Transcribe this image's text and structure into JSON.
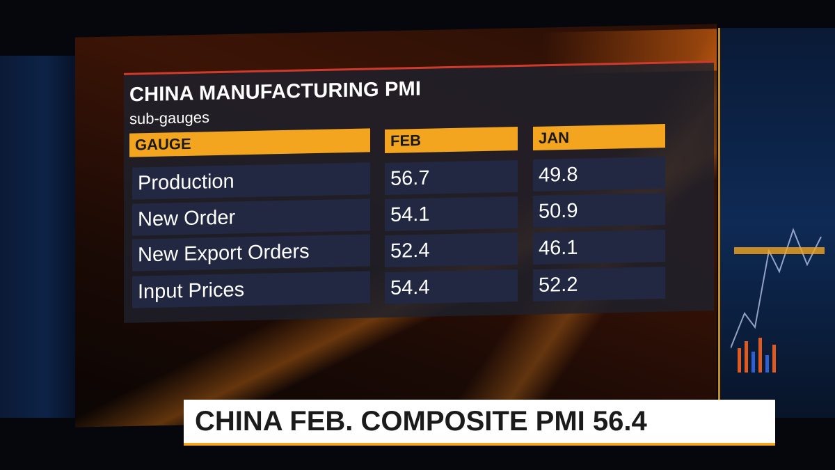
{
  "title": "CHINA MANUFACTURING PMI",
  "subtitle": "sub-gauges",
  "columns": [
    "GAUGE",
    "FEB",
    "JAN"
  ],
  "rows": [
    {
      "gauge": "Production",
      "feb": "56.7",
      "jan": "49.8"
    },
    {
      "gauge": "New Order",
      "feb": "54.1",
      "jan": "50.9"
    },
    {
      "gauge": "New Export Orders",
      "feb": "52.4",
      "jan": "46.1"
    },
    {
      "gauge": "Input Prices",
      "feb": "54.4",
      "jan": "52.2"
    }
  ],
  "ticker": "CHINA FEB. COMPOSITE PMI 56.4",
  "colors": {
    "header": "#f3a51f",
    "accent_red": "#d03a2a",
    "cell_bg": "#222842"
  }
}
